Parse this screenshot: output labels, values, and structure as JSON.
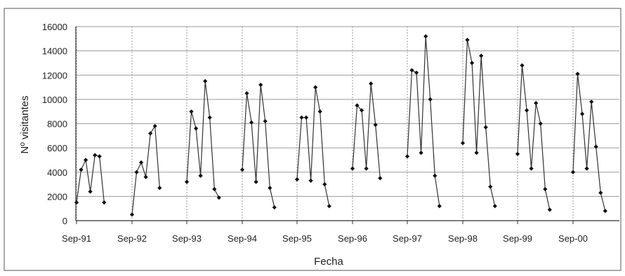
{
  "chart_data": {
    "type": "line",
    "title": "",
    "xlabel": "Fecha",
    "ylabel": "Nº visitantes",
    "ylim": [
      0,
      16000
    ],
    "yticks": [
      0,
      2000,
      4000,
      6000,
      8000,
      10000,
      12000,
      14000,
      16000
    ],
    "ytick_labels": [
      "0",
      "2000",
      "4000",
      "6000",
      "8000",
      "10000",
      "12000",
      "14000",
      "16000"
    ],
    "xticks": [
      "Sep-91",
      "Sep-92",
      "Sep-93",
      "Sep-94",
      "Sep-95",
      "Sep-96",
      "Sep-97",
      "Sep-98",
      "Sep-99",
      "Sep-00"
    ],
    "grid": true,
    "legend": "none",
    "colors": {
      "line": "#333333",
      "marker": "#111111",
      "grid": "#9a9a9a",
      "frame": "#555555"
    },
    "seasons": [
      {
        "start": "Sep-91",
        "values": [
          1500,
          4200,
          5000,
          2400,
          5400,
          5300,
          1500
        ]
      },
      {
        "start": "Sep-92",
        "values": [
          500,
          4000,
          4800,
          3600,
          7200,
          7800,
          2700
        ]
      },
      {
        "start": "Sep-93",
        "values": [
          3200,
          9000,
          7600,
          3700,
          11500,
          8500,
          2600,
          1900
        ]
      },
      {
        "start": "Sep-94",
        "values": [
          4200,
          10500,
          8100,
          3200,
          11200,
          8200,
          2700,
          1100
        ]
      },
      {
        "start": "Sep-95",
        "values": [
          3400,
          8500,
          8500,
          3300,
          11000,
          9000,
          3000,
          1200
        ]
      },
      {
        "start": "Sep-96",
        "values": [
          4300,
          9500,
          9100,
          4300,
          11300,
          7900,
          3500
        ]
      },
      {
        "start": "Sep-97",
        "values": [
          5300,
          12400,
          12200,
          5600,
          15200,
          10000,
          3700,
          1200
        ]
      },
      {
        "start": "Sep-98",
        "values": [
          6400,
          14900,
          13000,
          5600,
          13600,
          7700,
          2800,
          1200
        ]
      },
      {
        "start": "Sep-99",
        "values": [
          5500,
          12800,
          9100,
          4300,
          9700,
          8000,
          2600,
          900
        ]
      },
      {
        "start": "Sep-00",
        "values": [
          4000,
          12100,
          8800,
          4300,
          9800,
          6100,
          2300,
          800
        ]
      }
    ]
  }
}
